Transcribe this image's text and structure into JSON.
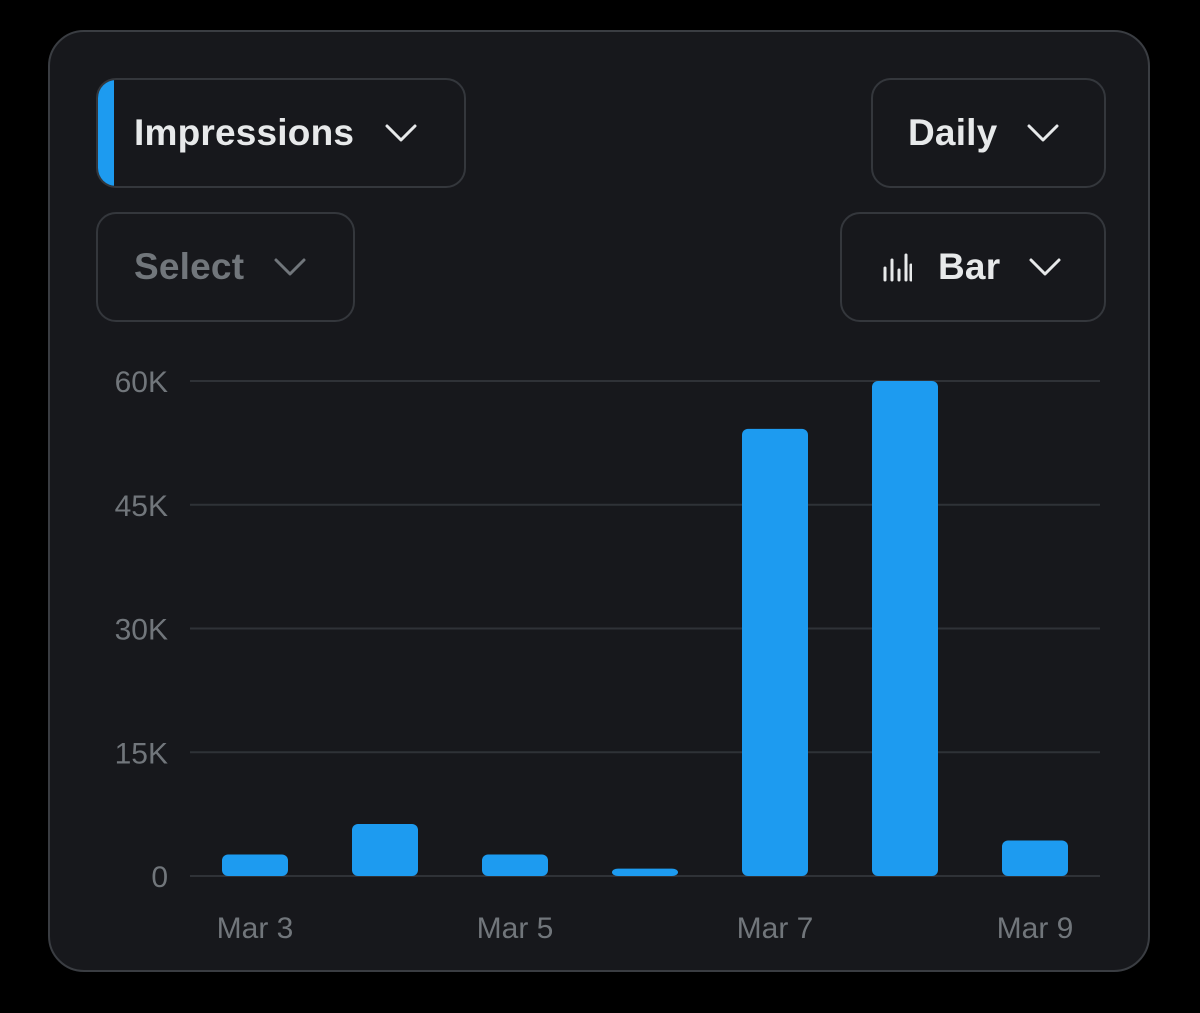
{
  "colors": {
    "accent": "#1d9bf0",
    "grid": "#2f3237",
    "tick_text": "#71767b"
  },
  "controls": {
    "metric": {
      "label": "Impressions",
      "icon": "chevron-down-icon"
    },
    "interval": {
      "label": "Daily",
      "icon": "chevron-down-icon"
    },
    "compare": {
      "label": "Select",
      "icon": "chevron-down-icon"
    },
    "chart_type": {
      "label": "Bar",
      "icon": "bar-chart-icon"
    }
  },
  "chart_data": {
    "type": "bar",
    "categories": [
      "Mar 3",
      "Mar 4",
      "Mar 5",
      "Mar 6",
      "Mar 7",
      "Mar 8",
      "Mar 9"
    ],
    "x_tick_labels": [
      "Mar 3",
      "",
      "Mar 5",
      "",
      "Mar 7",
      "",
      "Mar 9"
    ],
    "values": [
      2600,
      6300,
      2600,
      900,
      54200,
      60000,
      4300
    ],
    "y_ticks": [
      0,
      15000,
      30000,
      45000,
      60000
    ],
    "y_tick_labels": [
      "0",
      "15K",
      "30K",
      "45K",
      "60K"
    ],
    "ylim": [
      0,
      60000
    ],
    "grid": true,
    "title": "",
    "xlabel": "",
    "ylabel": ""
  }
}
